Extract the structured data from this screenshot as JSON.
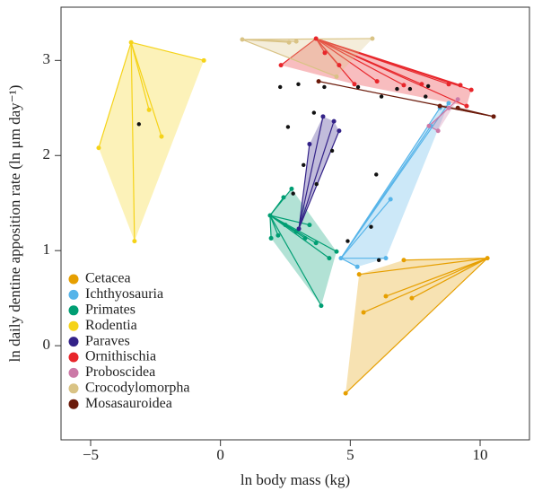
{
  "chart_data": {
    "type": "scatter",
    "xlabel": "ln body mass (kg)",
    "ylabel": "ln daily dentine apposition rate (ln μm day⁻¹)",
    "xlim": [
      -6.14,
      11.9
    ],
    "ylim": [
      -0.99,
      3.56
    ],
    "xticks": [
      {
        "value": -5,
        "label": "−5"
      },
      0,
      5,
      10
    ],
    "yticks": [
      0,
      1,
      2,
      3
    ],
    "series": [
      {
        "name": "Cetacea",
        "color": "#e69f00",
        "x": [
          10.28,
          7.37,
          6.37,
          5.51,
          4.82,
          5.34,
          7.06
        ],
        "y": [
          0.92,
          0.5,
          0.52,
          0.35,
          -0.5,
          0.75,
          0.9
        ]
      },
      {
        "name": "Ichthyosauria",
        "color": "#56b4e9",
        "x": [
          4.64,
          5.27,
          6.55,
          6.37,
          8.1,
          8.45,
          8.79
        ],
        "y": [
          0.92,
          0.83,
          1.54,
          0.92,
          2.31,
          2.5,
          2.55
        ]
      },
      {
        "name": "Primates",
        "color": "#009e73",
        "x": [
          1.91,
          1.95,
          2.22,
          2.5,
          2.92,
          3.26,
          3.68,
          3.88,
          4.19,
          4.47,
          2.43,
          2.74,
          3.43
        ],
        "y": [
          1.37,
          1.13,
          1.16,
          1.27,
          1.2,
          1.13,
          1.08,
          0.42,
          0.92,
          0.99,
          1.56,
          1.65,
          1.27
        ]
      },
      {
        "name": "Rodentia",
        "color": "#f5d318",
        "x": [
          -3.44,
          -0.64,
          -4.69,
          -3.31,
          -2.75,
          -2.27
        ],
        "y": [
          3.19,
          3.0,
          2.08,
          1.1,
          2.48,
          2.2
        ]
      },
      {
        "name": "Paraves",
        "color": "#332288",
        "x": [
          3.02,
          3.95,
          4.37,
          4.57,
          3.43
        ],
        "y": [
          1.23,
          2.41,
          2.36,
          2.26,
          2.12
        ]
      },
      {
        "name": "Ornithischia",
        "color": "#e8262b",
        "x": [
          3.68,
          2.33,
          4.57,
          5.16,
          6.03,
          7.06,
          7.75,
          8.79,
          9.24,
          9.66,
          9.48,
          4.02
        ],
        "y": [
          3.23,
          2.95,
          2.95,
          2.75,
          2.78,
          2.74,
          2.75,
          2.75,
          2.74,
          2.69,
          2.52,
          3.08
        ]
      },
      {
        "name": "Proboscidea",
        "color": "#cc79a7",
        "x": [
          8.03,
          8.38,
          8.79,
          9.14
        ],
        "y": [
          2.31,
          2.26,
          2.5,
          2.59
        ]
      },
      {
        "name": "Crocodylomorpha",
        "color": "#d9c385",
        "x": [
          0.84,
          5.85,
          2.64,
          4.47,
          2.92
        ],
        "y": [
          3.22,
          3.23,
          3.19,
          2.83,
          3.2
        ]
      },
      {
        "name": "Mosasauroidea",
        "color": "#6b1a0a",
        "x": [
          10.52,
          9.14,
          8.45,
          3.78
        ],
        "y": [
          2.41,
          2.5,
          2.52,
          2.78
        ]
      }
    ],
    "ancestral_nodes": {
      "color": "#111111",
      "x": [
        -3.14,
        3.2,
        2.3,
        3.0,
        4.0,
        5.3,
        6.2,
        7.3,
        4.3,
        3.7,
        2.8,
        6.0,
        7.9,
        5.8,
        4.9,
        3.6,
        2.6,
        6.8,
        8.0,
        6.1
      ],
      "y": [
        2.33,
        1.9,
        2.72,
        2.75,
        2.72,
        2.72,
        2.62,
        2.7,
        2.05,
        1.7,
        1.6,
        1.8,
        2.62,
        1.25,
        1.1,
        2.45,
        2.3,
        2.7,
        2.73,
        0.9
      ]
    }
  }
}
